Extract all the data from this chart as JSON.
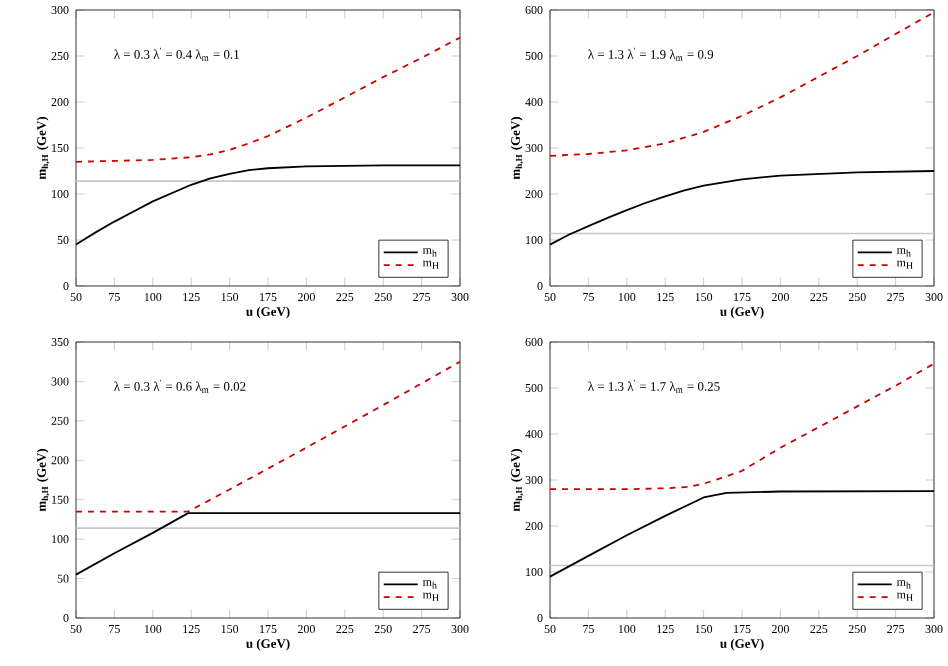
{
  "chart_data": [
    {
      "type": "line",
      "xlabel": "u (GeV)",
      "ylabel": "m$_{h,H}$ (GeV)",
      "annotations": [
        "λ = 0.3   λ$^{'}$ = 0.4   λ$_{m}$ = 0.1"
      ],
      "xlim": [
        50,
        300
      ],
      "ylim": [
        0,
        300
      ],
      "xticks": [
        50,
        75,
        100,
        125,
        150,
        175,
        200,
        225,
        250,
        275,
        300
      ],
      "yticks": [
        0,
        50,
        100,
        150,
        200,
        250,
        300
      ],
      "legend": "bottom right",
      "ref_lines": [
        {
          "axis": "y",
          "value": 114,
          "color": "#c8c8c8"
        }
      ],
      "series": [
        {
          "name": "m$_{h}$",
          "color": "#000000",
          "line_style": "solid",
          "x": [
            50,
            62.5,
            75,
            87.5,
            100,
            112.5,
            125,
            137.5,
            150,
            162.5,
            175,
            200,
            250,
            300
          ],
          "values": [
            45,
            58,
            70,
            81,
            92,
            101,
            110,
            117,
            122,
            126,
            128,
            130,
            131,
            131
          ]
        },
        {
          "name": "m$_{H}$",
          "color": "#cc0000",
          "line_style": "dashed",
          "x": [
            50,
            75,
            100,
            125,
            137.5,
            150,
            162.5,
            175,
            200,
            225,
            250,
            275,
            300
          ],
          "values": [
            135,
            136,
            137,
            140,
            143,
            148,
            155,
            163,
            183,
            205,
            227,
            248,
            270
          ]
        }
      ]
    },
    {
      "type": "line",
      "xlabel": "u (GeV)",
      "ylabel": "m$_{h,H}$ (GeV)",
      "annotations": [
        "λ = 1.3   λ$^{'}$ = 1.9   λ$_{m}$ = 0.9"
      ],
      "xlim": [
        50,
        300
      ],
      "ylim": [
        0,
        600
      ],
      "xticks": [
        50,
        75,
        100,
        125,
        150,
        175,
        200,
        225,
        250,
        275,
        300
      ],
      "yticks": [
        0,
        100,
        200,
        300,
        400,
        500,
        600
      ],
      "legend": "bottom right",
      "ref_lines": [
        {
          "axis": "y",
          "value": 114,
          "color": "#c8c8c8"
        }
      ],
      "series": [
        {
          "name": "m$_{h}$",
          "color": "#000000",
          "line_style": "solid",
          "x": [
            50,
            62.5,
            75,
            87.5,
            100,
            112.5,
            125,
            137.5,
            150,
            175,
            200,
            250,
            300
          ],
          "values": [
            90,
            112,
            130,
            148,
            165,
            181,
            195,
            208,
            218,
            232,
            240,
            247,
            250
          ]
        },
        {
          "name": "m$_{H}$",
          "color": "#cc0000",
          "line_style": "dashed",
          "x": [
            50,
            75,
            100,
            125,
            150,
            175,
            200,
            225,
            250,
            275,
            300
          ],
          "values": [
            283,
            287,
            295,
            310,
            335,
            370,
            410,
            455,
            500,
            548,
            595
          ]
        }
      ]
    },
    {
      "type": "line",
      "xlabel": "u (GeV)",
      "ylabel": "m$_{h,H}$ (GeV)",
      "annotations": [
        "λ = 0.3   λ$^{'}$ = 0.6   λ$_{m}$ = 0.02"
      ],
      "xlim": [
        50,
        300
      ],
      "ylim": [
        0,
        350
      ],
      "xticks": [
        50,
        75,
        100,
        125,
        150,
        175,
        200,
        225,
        250,
        275,
        300
      ],
      "yticks": [
        0,
        50,
        100,
        150,
        200,
        250,
        300,
        350
      ],
      "legend": "bottom right",
      "ref_lines": [
        {
          "axis": "y",
          "value": 114,
          "color": "#c8c8c8"
        }
      ],
      "series": [
        {
          "name": "m$_{h}$",
          "color": "#000000",
          "line_style": "solid",
          "x": [
            50,
            75,
            100,
            123,
            300
          ],
          "values": [
            55,
            82,
            108,
            133,
            133
          ]
        },
        {
          "name": "m$_{H}$",
          "color": "#cc0000",
          "line_style": "dashed",
          "x": [
            50,
            123,
            150,
            200,
            250,
            300
          ],
          "values": [
            135,
            135,
            163,
            216,
            270,
            325
          ]
        }
      ]
    },
    {
      "type": "line",
      "xlabel": "u (GeV)",
      "ylabel": "m$_{h,H}$ (GeV)",
      "annotations": [
        "λ = 1.3   λ$^{'}$ = 1.7   λ$_{m}$ = 0.25"
      ],
      "xlim": [
        50,
        300
      ],
      "ylim": [
        0,
        600
      ],
      "xticks": [
        50,
        75,
        100,
        125,
        150,
        175,
        200,
        225,
        250,
        275,
        300
      ],
      "yticks": [
        0,
        100,
        200,
        300,
        400,
        500,
        600
      ],
      "legend": "bottom right",
      "ref_lines": [
        {
          "axis": "y",
          "value": 114,
          "color": "#c8c8c8"
        }
      ],
      "series": [
        {
          "name": "m$_{h}$",
          "color": "#000000",
          "line_style": "solid",
          "x": [
            50,
            75,
            100,
            125,
            150,
            165,
            200,
            300
          ],
          "values": [
            90,
            135,
            180,
            222,
            262,
            272,
            275,
            276
          ]
        },
        {
          "name": "m$_{H}$",
          "color": "#cc0000",
          "line_style": "dashed",
          "x": [
            50,
            100,
            125,
            140,
            150,
            162.5,
            175,
            200,
            225,
            250,
            275,
            300
          ],
          "values": [
            280,
            280,
            282,
            285,
            292,
            305,
            320,
            370,
            415,
            460,
            505,
            553
          ]
        }
      ]
    }
  ]
}
